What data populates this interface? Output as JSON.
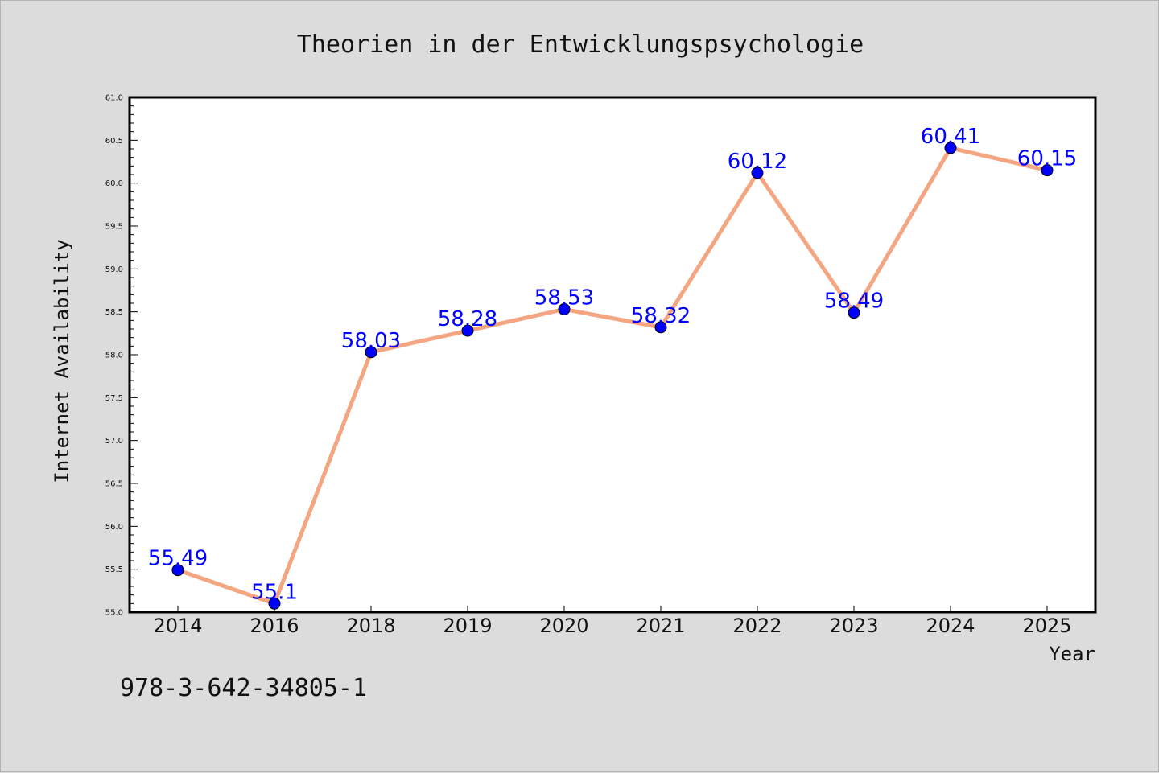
{
  "chart_data": {
    "type": "line",
    "title": "Theorien in der Entwicklungspsychologie",
    "xlabel": "Year",
    "ylabel": "Internet Availability",
    "categories": [
      "2014",
      "2016",
      "2018",
      "2019",
      "2020",
      "2021",
      "2022",
      "2023",
      "2024",
      "2025"
    ],
    "values": [
      55.49,
      55.1,
      58.03,
      58.28,
      58.53,
      58.32,
      60.12,
      58.49,
      60.41,
      60.15
    ],
    "data_labels": [
      "55.49",
      "55.1",
      "58.03",
      "58.28",
      "58.53",
      "58.32",
      "60.12",
      "58.49",
      "60.41",
      "60.15"
    ],
    "ylim": [
      55.0,
      61.0
    ],
    "y_ticks": [
      "55.0",
      "55.5",
      "56.0",
      "56.5",
      "57.0",
      "57.5",
      "58.0",
      "58.5",
      "59.0",
      "59.5",
      "60.0",
      "60.5",
      "61.0"
    ],
    "grid": false,
    "line_color": "#f4a582",
    "marker_color": "#0000ff",
    "label_color": "#0000ff"
  },
  "footnote": "978-3-642-34805-1"
}
